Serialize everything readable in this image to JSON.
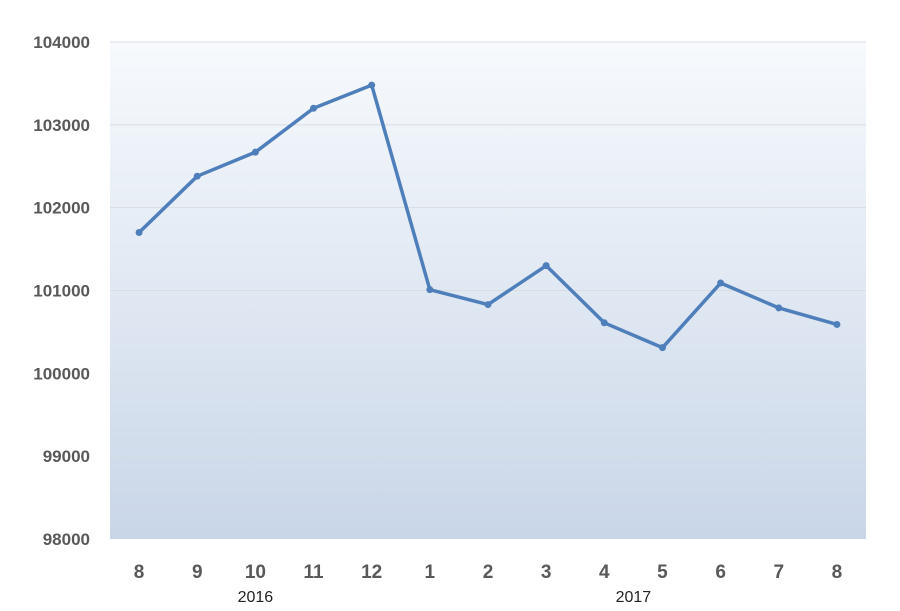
{
  "chart_data": {
    "type": "line",
    "categories": [
      "8",
      "9",
      "10",
      "11",
      "12",
      "1",
      "2",
      "3",
      "4",
      "5",
      "6",
      "7",
      "8"
    ],
    "category_groups": [
      {
        "label": "2016",
        "from": 0,
        "to": 4
      },
      {
        "label": "2017",
        "from": 5,
        "to": 12
      }
    ],
    "series": [
      {
        "values": [
          101700,
          102380,
          102670,
          103200,
          103480,
          101010,
          100830,
          101300,
          100610,
          100310,
          101090,
          100790,
          100590
        ]
      }
    ],
    "yticks": [
      "98000",
      "99000",
      "100000",
      "101000",
      "102000",
      "103000",
      "104000"
    ],
    "ylim": [
      98000,
      104000
    ],
    "title": "",
    "xlabel": "",
    "ylabel": "",
    "grid": true,
    "legend": "none",
    "colors": {
      "line": "#4f7fba",
      "grid": "#d9dde3",
      "plot_top": "#f7fafd",
      "plot_bottom": "#c9d6e8"
    }
  }
}
